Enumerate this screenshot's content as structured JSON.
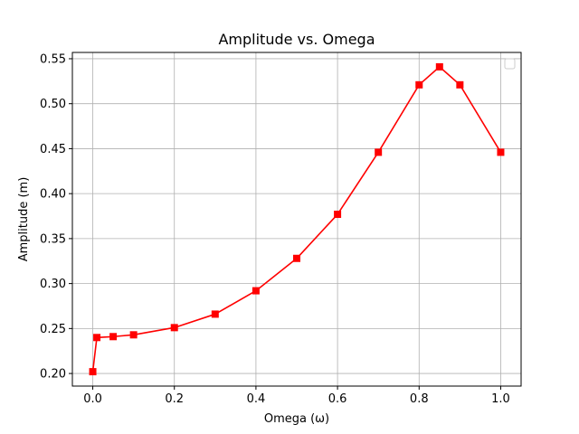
{
  "chart_data": {
    "type": "line",
    "title": "Amplitude vs. Omega",
    "xlabel": "Omega (ω)",
    "ylabel": "Amplitude (m)",
    "xlim": [
      -0.05,
      1.05
    ],
    "ylim": [
      0.186,
      0.557
    ],
    "xticks": [
      0.0,
      0.2,
      0.4,
      0.6,
      0.8,
      1.0
    ],
    "xtick_labels": [
      "0.0",
      "0.2",
      "0.4",
      "0.6",
      "0.8",
      "1.0"
    ],
    "yticks": [
      0.2,
      0.25,
      0.3,
      0.35,
      0.4,
      0.45,
      0.5,
      0.55
    ],
    "ytick_labels": [
      "0.20",
      "0.25",
      "0.30",
      "0.35",
      "0.40",
      "0.45",
      "0.50",
      "0.55"
    ],
    "grid": true,
    "legend": "top-right (empty)",
    "series": [
      {
        "color": "#ff0000",
        "marker": "square",
        "x": [
          0.0,
          0.01,
          0.05,
          0.1,
          0.2,
          0.3,
          0.4,
          0.5,
          0.6,
          0.7,
          0.8,
          0.85,
          0.9,
          1.0
        ],
        "y": [
          0.202,
          0.24,
          0.241,
          0.243,
          0.251,
          0.266,
          0.292,
          0.328,
          0.377,
          0.446,
          0.521,
          0.541,
          0.521,
          0.446
        ]
      }
    ]
  }
}
